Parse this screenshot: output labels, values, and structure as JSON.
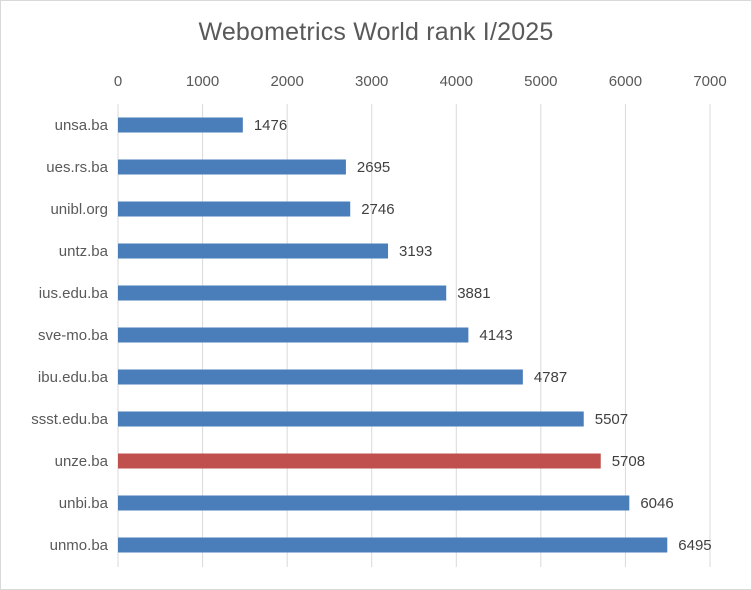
{
  "chart_data": {
    "type": "bar",
    "orientation": "horizontal",
    "title": "Webometrics World rank I/2025",
    "xlabel": "",
    "ylabel": "",
    "categories": [
      "unsa.ba",
      "ues.rs.ba",
      "unibl.org",
      "untz.ba",
      "ius.edu.ba",
      "sve-mo.ba",
      "ibu.edu.ba",
      "ssst.edu.ba",
      "unze.ba",
      "unbi.ba",
      "unmo.ba"
    ],
    "values": [
      1476,
      2695,
      2746,
      3193,
      3881,
      4143,
      4787,
      5507,
      5708,
      6046,
      6495
    ],
    "xlim": [
      0,
      7000
    ],
    "x_ticks": [
      "0",
      "1000",
      "2000",
      "3000",
      "4000",
      "5000",
      "6000",
      "7000"
    ],
    "x_axis_position": "top",
    "grid": true,
    "legend": "none",
    "data_labels": true,
    "colors": {
      "default_bar": "#4a7ebb",
      "highlight_bar": "#c0504d",
      "gridline": "#d9d9d9",
      "text": "#595959"
    },
    "highlight_category": "unze.ba"
  }
}
